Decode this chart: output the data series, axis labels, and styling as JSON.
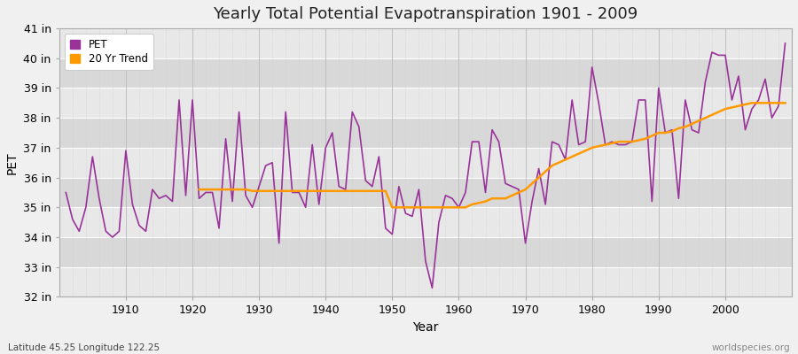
{
  "title": "Yearly Total Potential Evapotranspiration 1901 - 2009",
  "xlabel": "Year",
  "ylabel": "PET",
  "bottom_left_label": "Latitude 45.25 Longitude 122.25",
  "bottom_right_label": "worldspecies.org",
  "bg_color": "#f0f0f0",
  "plot_bg_color": "#e8e8e8",
  "band_color_1": "#e8e8e8",
  "band_color_2": "#d8d8d8",
  "pet_color": "#993399",
  "trend_color": "#ff9900",
  "years": [
    1901,
    1902,
    1903,
    1904,
    1905,
    1906,
    1907,
    1908,
    1909,
    1910,
    1911,
    1912,
    1913,
    1914,
    1915,
    1916,
    1917,
    1918,
    1919,
    1920,
    1921,
    1922,
    1923,
    1924,
    1925,
    1926,
    1927,
    1928,
    1929,
    1930,
    1931,
    1932,
    1933,
    1934,
    1935,
    1936,
    1937,
    1938,
    1939,
    1940,
    1941,
    1942,
    1943,
    1944,
    1945,
    1946,
    1947,
    1948,
    1949,
    1950,
    1951,
    1952,
    1953,
    1954,
    1955,
    1956,
    1957,
    1958,
    1959,
    1960,
    1961,
    1962,
    1963,
    1964,
    1965,
    1966,
    1967,
    1968,
    1969,
    1970,
    1971,
    1972,
    1973,
    1974,
    1975,
    1976,
    1977,
    1978,
    1979,
    1980,
    1981,
    1982,
    1983,
    1984,
    1985,
    1986,
    1987,
    1988,
    1989,
    1990,
    1991,
    1992,
    1993,
    1994,
    1995,
    1996,
    1997,
    1998,
    1999,
    2000,
    2001,
    2002,
    2003,
    2004,
    2005,
    2006,
    2007,
    2008,
    2009
  ],
  "pet_values": [
    35.5,
    34.6,
    34.2,
    35.0,
    36.7,
    35.3,
    34.2,
    34.0,
    34.2,
    36.9,
    35.1,
    34.4,
    34.2,
    35.6,
    35.3,
    35.4,
    35.2,
    38.6,
    35.4,
    38.6,
    35.3,
    35.5,
    35.5,
    34.3,
    37.3,
    35.2,
    38.2,
    35.4,
    35.0,
    35.7,
    36.4,
    36.5,
    33.8,
    38.2,
    35.5,
    35.5,
    35.0,
    37.1,
    35.1,
    37.0,
    37.5,
    35.7,
    35.6,
    38.2,
    37.7,
    35.9,
    35.7,
    36.7,
    34.3,
    34.1,
    35.7,
    34.8,
    34.7,
    35.6,
    33.2,
    32.3,
    34.5,
    35.4,
    35.3,
    35.0,
    35.5,
    37.2,
    37.2,
    35.5,
    37.6,
    37.2,
    35.8,
    35.7,
    35.6,
    33.8,
    35.2,
    36.3,
    35.1,
    37.2,
    37.1,
    36.6,
    38.6,
    37.1,
    37.2,
    39.7,
    38.5,
    37.1,
    37.2,
    37.1,
    37.1,
    37.2,
    38.6,
    38.6,
    35.2,
    39.0,
    37.5,
    37.6,
    35.3,
    38.6,
    37.6,
    37.5,
    39.2,
    40.2,
    40.1,
    40.1,
    38.6,
    39.4,
    37.6,
    38.3,
    38.6,
    39.3,
    38.0,
    38.4,
    40.5
  ],
  "trend_years": [
    1921,
    1922,
    1923,
    1924,
    1925,
    1926,
    1927,
    1928,
    1929,
    1930,
    1931,
    1932,
    1933,
    1934,
    1935,
    1936,
    1937,
    1938,
    1939,
    1940,
    1941,
    1942,
    1943,
    1944,
    1945,
    1946,
    1947,
    1948,
    1949,
    1950,
    1951,
    1952,
    1953,
    1954,
    1955,
    1956,
    1957,
    1958,
    1959,
    1960,
    1961,
    1962,
    1963,
    1964,
    1965,
    1966,
    1967,
    1968,
    1969,
    1970,
    1971,
    1972,
    1973,
    1974,
    1975,
    1976,
    1977,
    1978,
    1979,
    1980,
    1981,
    1982,
    1983,
    1984,
    1985,
    1986,
    1987,
    1988,
    1989,
    1990,
    1991,
    1992,
    1993,
    1994,
    1995,
    1996,
    1997,
    1998,
    1999,
    2000,
    2001,
    2002,
    2003,
    2004,
    2005,
    2006,
    2007,
    2008,
    2009
  ],
  "trend_values": [
    35.6,
    35.6,
    35.6,
    35.6,
    35.6,
    35.6,
    35.6,
    35.6,
    35.55,
    35.55,
    35.55,
    35.55,
    35.55,
    35.55,
    35.55,
    35.55,
    35.55,
    35.55,
    35.55,
    35.55,
    35.55,
    35.55,
    35.55,
    35.55,
    35.55,
    35.55,
    35.55,
    35.55,
    35.55,
    35.0,
    35.0,
    35.0,
    35.0,
    35.0,
    35.0,
    35.0,
    35.0,
    35.0,
    35.0,
    35.0,
    35.0,
    35.1,
    35.15,
    35.2,
    35.3,
    35.3,
    35.3,
    35.4,
    35.5,
    35.6,
    35.8,
    36.0,
    36.2,
    36.4,
    36.5,
    36.6,
    36.7,
    36.8,
    36.9,
    37.0,
    37.05,
    37.1,
    37.15,
    37.2,
    37.2,
    37.2,
    37.25,
    37.3,
    37.4,
    37.5,
    37.5,
    37.55,
    37.65,
    37.7,
    37.8,
    37.9,
    38.0,
    38.1,
    38.2,
    38.3,
    38.35,
    38.4,
    38.45,
    38.5,
    38.5,
    38.5,
    38.5,
    38.5,
    38.5
  ],
  "ylim": [
    32,
    41
  ],
  "yticks": [
    32,
    33,
    34,
    35,
    36,
    37,
    38,
    39,
    40,
    41
  ],
  "ytick_labels": [
    "32 in",
    "33 in",
    "34 in",
    "35 in",
    "36 in",
    "37 in",
    "38 in",
    "39 in",
    "40 in",
    "41 in"
  ],
  "xlim": [
    1900,
    2010
  ],
  "xticks": [
    1910,
    1920,
    1930,
    1940,
    1950,
    1960,
    1970,
    1980,
    1990,
    2000
  ]
}
